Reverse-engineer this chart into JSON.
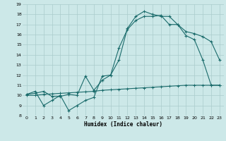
{
  "xlabel": "Humidex (Indice chaleur)",
  "bg_color": "#cce8e8",
  "grid_color": "#aacccc",
  "line_color": "#1a6b6b",
  "xlim": [
    -0.5,
    23.5
  ],
  "ylim": [
    8,
    19
  ],
  "xticks": [
    0,
    1,
    2,
    3,
    4,
    5,
    6,
    7,
    8,
    9,
    10,
    11,
    12,
    13,
    14,
    15,
    16,
    17,
    18,
    19,
    20,
    21,
    22,
    23
  ],
  "yticks": [
    8,
    9,
    10,
    11,
    12,
    13,
    14,
    15,
    16,
    17,
    18,
    19
  ],
  "line1_x": [
    0,
    1,
    2,
    3,
    4,
    5,
    6,
    7,
    8,
    9,
    10,
    11,
    12,
    13,
    14,
    15,
    16,
    17,
    18,
    19,
    20,
    21,
    22,
    23
  ],
  "line1_y": [
    10.1,
    10.4,
    9.0,
    9.5,
    10.0,
    8.5,
    9.0,
    9.5,
    9.8,
    11.9,
    12.0,
    14.7,
    16.5,
    17.4,
    17.8,
    17.8,
    17.9,
    17.0,
    17.0,
    15.9,
    15.5,
    13.5,
    11.0,
    11.0
  ],
  "line2_x": [
    0,
    1,
    2,
    3,
    4,
    5,
    6,
    7,
    8,
    9,
    10,
    11,
    12,
    13,
    14,
    15,
    16,
    17,
    18,
    19,
    20,
    21,
    22,
    23
  ],
  "line2_y": [
    10.1,
    10.2,
    10.4,
    9.9,
    9.9,
    10.1,
    10.0,
    11.9,
    10.5,
    11.5,
    12.0,
    13.5,
    16.6,
    17.8,
    18.3,
    18.0,
    17.8,
    17.8,
    17.0,
    16.3,
    16.1,
    15.8,
    15.3,
    13.5
  ],
  "line3_x": [
    0,
    1,
    2,
    3,
    4,
    5,
    6,
    7,
    8,
    9,
    10,
    11,
    12,
    13,
    14,
    15,
    16,
    17,
    18,
    19,
    20,
    21,
    22,
    23
  ],
  "line3_y": [
    10.0,
    10.0,
    10.1,
    10.15,
    10.2,
    10.25,
    10.3,
    10.35,
    10.4,
    10.5,
    10.55,
    10.6,
    10.65,
    10.7,
    10.75,
    10.8,
    10.85,
    10.9,
    10.95,
    11.0,
    11.0,
    11.0,
    11.0,
    11.0
  ]
}
